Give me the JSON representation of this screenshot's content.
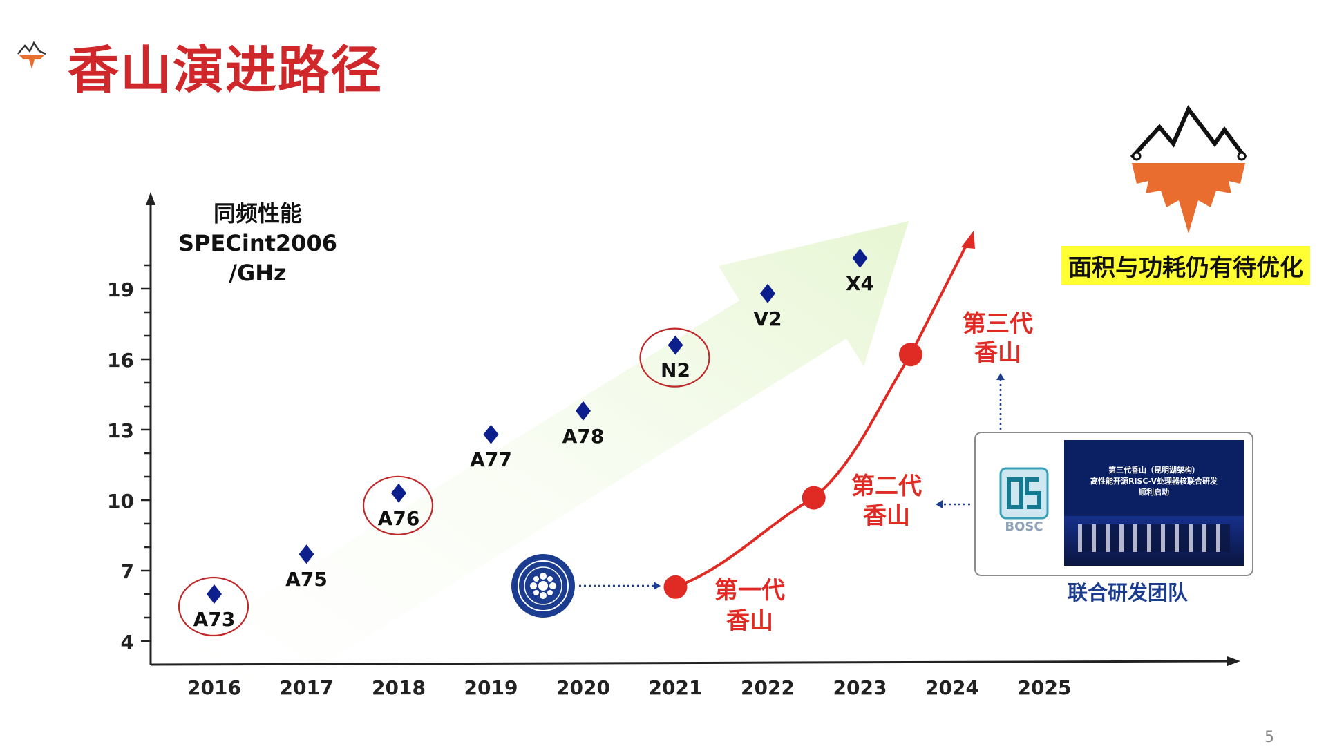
{
  "title": "香山演进路径",
  "page_number": "5",
  "note": "面积与功耗仍有待优化",
  "team_label": "联合研发团队",
  "bosc_logo_text": "BOSC",
  "photo_text": {
    "line1": "第三代香山（昆明湖架构）",
    "line2": "高性能开源RISC-V处理器核联合研发",
    "line3": "顺利启动"
  },
  "generations": [
    {
      "label_line1": "第一代",
      "label_line2": "香山"
    },
    {
      "label_line1": "第二代",
      "label_line2": "香山"
    },
    {
      "label_line1": "第三代",
      "label_line2": "香山"
    }
  ],
  "colors": {
    "title": "#d0272a",
    "marker": "#0d1f8c",
    "curve": "#e02a24",
    "arrow": "#edf8dd",
    "highlight": "#ffff33",
    "team": "#1b3c8f"
  },
  "icons": [
    "xiangshan-logo-icon",
    "cas-logo-icon",
    "bosc-logo-icon"
  ],
  "chart_data": {
    "type": "scatter",
    "ylabel": [
      "同频性能",
      "SPECint2006",
      "/GHz"
    ],
    "y_ticks": [
      4,
      7,
      10,
      13,
      16,
      19
    ],
    "ylim": [
      4,
      19
    ],
    "x_ticks": [
      "2016",
      "2017",
      "2018",
      "2019",
      "2020",
      "2021",
      "2022",
      "2023",
      "2024",
      "2025"
    ],
    "points": [
      {
        "label": "A73",
        "year": 2016,
        "y": 6.0,
        "circled": true
      },
      {
        "label": "A75",
        "year": 2017,
        "y": 7.7,
        "circled": false
      },
      {
        "label": "A76",
        "year": 2018,
        "y": 10.3,
        "circled": true
      },
      {
        "label": "A77",
        "year": 2019,
        "y": 12.8,
        "circled": false
      },
      {
        "label": "A78",
        "year": 2020,
        "y": 13.8,
        "circled": false
      },
      {
        "label": "N2",
        "year": 2021,
        "y": 16.6,
        "circled": true
      },
      {
        "label": "V2",
        "year": 2022,
        "y": 18.8,
        "circled": false
      },
      {
        "label": "X4",
        "year": 2023,
        "y": 20.3,
        "circled": false
      }
    ],
    "xiangshan_points": [
      {
        "year": 2021.0,
        "y": 6.3
      },
      {
        "year": 2022.5,
        "y": 10.1
      },
      {
        "year": 2023.55,
        "y": 16.2
      }
    ]
  }
}
